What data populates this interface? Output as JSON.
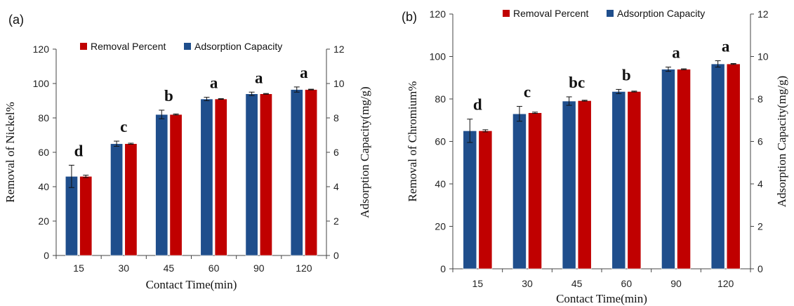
{
  "chart_data": [
    {
      "type": "bar",
      "panel_label": "(a)",
      "categories": [
        "15",
        "30",
        "45",
        "60",
        "90",
        "120"
      ],
      "xlabel": "Contact Time(min)",
      "ylabel": "Removal of Nickel%",
      "y2label": "Adsorption Capacity(mg/g)",
      "ylim": [
        0,
        120
      ],
      "y2lim": [
        0,
        12
      ],
      "yticks": [
        "0",
        "20",
        "40",
        "60",
        "80",
        "100",
        "120"
      ],
      "y2ticks": [
        "0",
        "2",
        "4",
        "6",
        "8",
        "10",
        "12"
      ],
      "legend_position": "top",
      "series": [
        {
          "name": "Adsorption Capacity",
          "axis": "right",
          "color": "#1F4E8C",
          "values": [
            4.6,
            6.5,
            8.2,
            9.1,
            9.4,
            9.65
          ],
          "errors": [
            0.65,
            0.15,
            0.25,
            0.1,
            0.1,
            0.15
          ]
        },
        {
          "name": "Removal Percent",
          "axis": "left",
          "color": "#C00000",
          "values": [
            46,
            65,
            82,
            91,
            94,
            96.5
          ],
          "errors": [
            0.7,
            0.3,
            0.3,
            0.2,
            0.2,
            0.2
          ]
        }
      ],
      "letters": [
        "d",
        "c",
        "b",
        "a",
        "a",
        "a"
      ]
    },
    {
      "type": "bar",
      "panel_label": "(b)",
      "categories": [
        "15",
        "30",
        "45",
        "60",
        "90",
        "120"
      ],
      "xlabel": "Contact Time(min)",
      "ylabel": "Removal of Chromium%",
      "y2label": "Adsorption Capacity(mg/g)",
      "ylim": [
        0,
        120
      ],
      "y2lim": [
        0,
        12
      ],
      "yticks": [
        "0",
        "20",
        "40",
        "60",
        "80",
        "100",
        "120"
      ],
      "y2ticks": [
        "0",
        "2",
        "4",
        "6",
        "8",
        "10",
        "12"
      ],
      "legend_position": "top",
      "series": [
        {
          "name": "Adsorption Capacity",
          "axis": "right",
          "color": "#1F4E8C",
          "values": [
            6.5,
            7.3,
            7.9,
            8.35,
            9.4,
            9.65
          ],
          "errors": [
            0.55,
            0.35,
            0.2,
            0.1,
            0.1,
            0.15
          ]
        },
        {
          "name": "Removal Percent",
          "axis": "left",
          "color": "#C00000",
          "values": [
            65,
            73.5,
            79.2,
            83.5,
            94,
            96.5
          ],
          "errors": [
            0.5,
            0.3,
            0.2,
            0.2,
            0.2,
            0.2
          ]
        }
      ],
      "letters": [
        "d",
        "c",
        "bc",
        "b",
        "a",
        "a"
      ]
    }
  ]
}
